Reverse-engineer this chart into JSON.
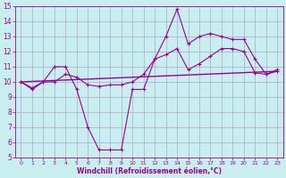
{
  "xlabel": "Windchill (Refroidissement éolien,°C)",
  "background_color": "#c8eef0",
  "grid_color": "#aaaacc",
  "line_color": "#990099",
  "xlim": [
    -0.5,
    23.5
  ],
  "ylim": [
    5,
    15
  ],
  "xticks": [
    0,
    1,
    2,
    3,
    4,
    5,
    6,
    7,
    8,
    9,
    10,
    11,
    12,
    13,
    14,
    15,
    16,
    17,
    18,
    19,
    20,
    21,
    22,
    23
  ],
  "yticks": [
    5,
    6,
    7,
    8,
    9,
    10,
    11,
    12,
    13,
    14,
    15
  ],
  "series1_x": [
    0,
    1,
    2,
    3,
    4,
    5,
    6,
    7,
    8,
    9,
    10,
    11,
    12,
    13,
    14,
    15,
    16,
    17,
    18,
    19,
    20,
    21,
    22,
    23
  ],
  "series1_y": [
    10.0,
    9.5,
    10.0,
    11.0,
    11.0,
    9.5,
    7.0,
    5.5,
    5.5,
    5.5,
    9.5,
    9.5,
    11.5,
    13.0,
    14.8,
    12.5,
    13.0,
    13.2,
    13.0,
    12.8,
    12.8,
    11.5,
    10.5,
    10.8
  ],
  "series2_x": [
    0,
    1,
    2,
    3,
    4,
    5,
    6,
    7,
    8,
    9,
    10,
    11,
    12,
    13,
    14,
    15,
    16,
    17,
    18,
    19,
    20,
    21,
    22,
    23
  ],
  "series2_y": [
    10.0,
    9.6,
    10.0,
    10.0,
    10.5,
    10.3,
    9.8,
    9.7,
    9.8,
    9.8,
    10.0,
    10.5,
    11.5,
    11.8,
    12.2,
    10.8,
    11.2,
    11.7,
    12.2,
    12.2,
    12.0,
    10.6,
    10.5,
    10.7
  ],
  "series3_x": [
    0,
    23
  ],
  "series3_y": [
    10.0,
    10.7
  ]
}
